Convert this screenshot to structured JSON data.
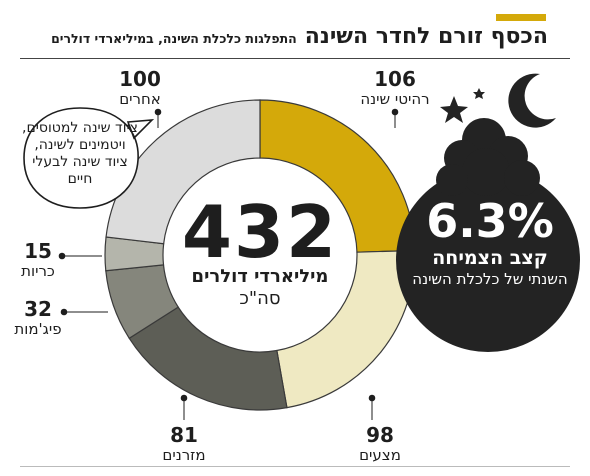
{
  "header": {
    "title": "הכסף זורם לחדר השינה",
    "subtitle": "התפלגות כלכלת השינה, במיליארדי דולרים"
  },
  "chart_data": {
    "type": "pie",
    "title": "הכסף זורם לחדר השינה",
    "subtitle": "התפלגות כלכלת השינה, במיליארדי דולרים",
    "total": 432,
    "center_value_label": "432",
    "center_unit_label": "מיליארדי דולרים",
    "center_total_label": "סה\"כ",
    "slices": [
      {
        "key": "bedroom_furniture",
        "label": "רהיטי שינה",
        "value": 106,
        "color": "#d4a90a"
      },
      {
        "key": "bedding",
        "label": "מצעים",
        "value": 98,
        "color": "#efe9c2"
      },
      {
        "key": "mattresses",
        "label": "מזרנים",
        "value": 81,
        "color": "#5d5e56"
      },
      {
        "key": "pajamas",
        "label": "פיג'מות",
        "value": 32,
        "color": "#85867c"
      },
      {
        "key": "pillows",
        "label": "כריות",
        "value": 15,
        "color": "#b4b5ab"
      },
      {
        "key": "other",
        "label": "אחרים",
        "value": 100,
        "color": "#dcdcdc"
      }
    ],
    "value_labels": [
      "106",
      "98",
      "81",
      "32",
      "15",
      "100"
    ]
  },
  "other_note": "ציוד שינה למטוסים, ויטמינים לשינה, ציוד שינה לבעלי חיים",
  "growth": {
    "value_label": "6.3%",
    "title": "קצב הצמיחה",
    "description": "השנתי של כלכלת השינה"
  },
  "colors": {
    "accent": "#d4a90a",
    "dark_circle": "#232323",
    "text": "#1e1e1e"
  }
}
